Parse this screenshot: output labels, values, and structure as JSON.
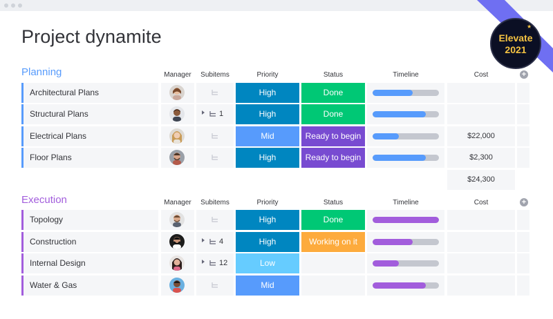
{
  "board": {
    "title": "Project dynamite"
  },
  "badge": {
    "line1": "Elevate",
    "line2": "2021",
    "accent": "#f5c342",
    "ribbon": "#6f6ff2"
  },
  "columns": {
    "manager": "Manager",
    "subitems": "Subitems",
    "priority": "Priority",
    "status": "Status",
    "timeline": "Timeline",
    "cost": "Cost"
  },
  "colors": {
    "high": "#0086c0",
    "mid": "#579bfc",
    "low": "#66ccff",
    "done": "#00c875",
    "ready": "#784bd1",
    "working": "#fdab3d",
    "planning": "#579bfc",
    "execution": "#a25ddc"
  },
  "groups": [
    {
      "title": "Planning",
      "color": "#579bfc",
      "total_cost": "$24,300",
      "rows": [
        {
          "name": "Architectural Plans",
          "subitems": "",
          "priority": "High",
          "status": "Done",
          "timeline": 0.6,
          "cost": ""
        },
        {
          "name": "Structural Plans",
          "subitems": "1",
          "priority": "High",
          "status": "Done",
          "timeline": 0.8,
          "cost": ""
        },
        {
          "name": "Electrical Plans",
          "subitems": "",
          "priority": "Mid",
          "status": "Ready to begin",
          "timeline": 0.4,
          "cost": "$22,000"
        },
        {
          "name": "Floor Plans",
          "subitems": "",
          "priority": "High",
          "status": "Ready to begin",
          "timeline": 0.8,
          "cost": "$2,300"
        }
      ]
    },
    {
      "title": "Execution",
      "color": "#a25ddc",
      "rows": [
        {
          "name": "Topology",
          "subitems": "",
          "priority": "High",
          "status": "Done",
          "timeline": 1.0,
          "cost": ""
        },
        {
          "name": "Construction",
          "subitems": "4",
          "priority": "High",
          "status": "Working on it",
          "timeline": 0.6,
          "cost": ""
        },
        {
          "name": "Internal Design",
          "subitems": "12",
          "priority": "Low",
          "status": "",
          "timeline": 0.4,
          "cost": ""
        },
        {
          "name": "Water & Gas",
          "subitems": "",
          "priority": "Mid",
          "status": "",
          "timeline": 0.8,
          "cost": ""
        }
      ]
    }
  ]
}
